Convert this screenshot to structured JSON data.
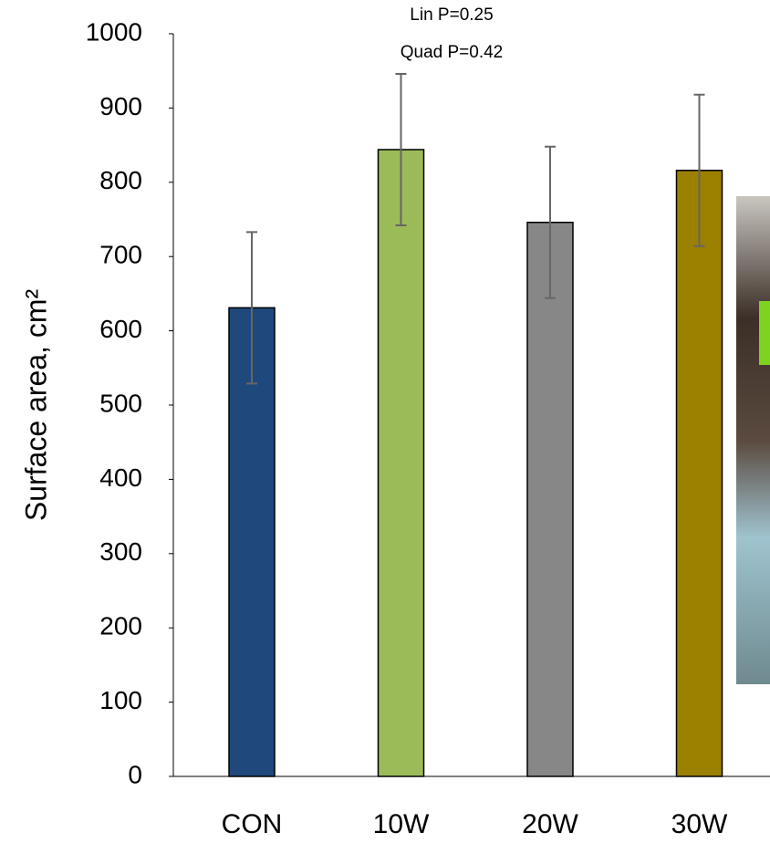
{
  "chart_data": {
    "type": "bar",
    "y_label": "Surface area, cm²",
    "annotations": [
      "Lin P=0.25",
      "Quad P=0.42"
    ],
    "categories": [
      "CON",
      "10W",
      "20W",
      "30W"
    ],
    "values": [
      631,
      844,
      746,
      816
    ],
    "errors": [
      102,
      102,
      102,
      102
    ],
    "colors": [
      "#1f497d",
      "#9bbb59",
      "#878787",
      "#9c8000"
    ],
    "ylim": [
      0,
      1000
    ],
    "yticks": [
      0,
      100,
      200,
      300,
      400,
      500,
      600,
      700,
      800,
      900,
      1000
    ],
    "grid": false
  }
}
